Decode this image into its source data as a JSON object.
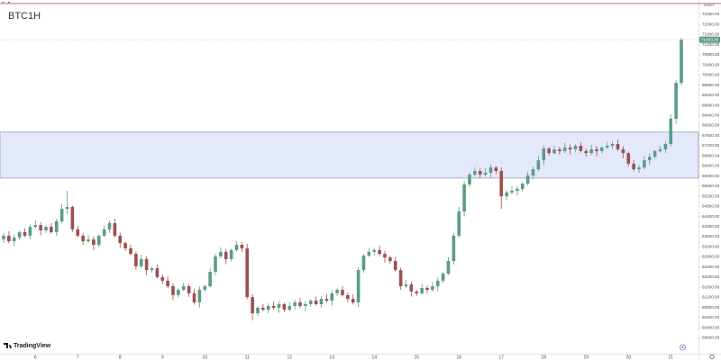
{
  "chart_data": {
    "type": "candlestick",
    "title": "BTC1H",
    "unit_label": "USDT",
    "watermark": "TradingView",
    "up_color": "#5b9c86",
    "down_color": "#9e4f4f",
    "grid": false,
    "ylim": [
      58970,
      72970
    ],
    "yticks": [
      {
        "value": 72400,
        "label": "72400.00"
      },
      {
        "value": 72000,
        "label": "72000.00"
      },
      {
        "value": 71600,
        "label": "71600.00"
      },
      {
        "value": 71200,
        "label": "71200.00"
      },
      {
        "value": 70800,
        "label": "70800.00"
      },
      {
        "value": 70400,
        "label": "70400.00"
      },
      {
        "value": 70000,
        "label": "70000.00"
      },
      {
        "value": 69600,
        "label": "69600.00"
      },
      {
        "value": 69200,
        "label": "69200.00"
      },
      {
        "value": 68800,
        "label": "68800.00"
      },
      {
        "value": 68400,
        "label": "68400.00"
      },
      {
        "value": 68000,
        "label": "68000.00"
      },
      {
        "value": 67600,
        "label": "67600.00"
      },
      {
        "value": 67200,
        "label": "67200.00"
      },
      {
        "value": 66800,
        "label": "66800.00"
      },
      {
        "value": 66400,
        "label": "66400.00"
      },
      {
        "value": 66000,
        "label": "66000.00"
      },
      {
        "value": 65600,
        "label": "65600.00"
      },
      {
        "value": 65200,
        "label": "65200.00"
      },
      {
        "value": 64800,
        "label": "64800.00"
      },
      {
        "value": 64400,
        "label": "64400.00"
      },
      {
        "value": 64000,
        "label": "64000.00"
      },
      {
        "value": 63600,
        "label": "63600.00"
      },
      {
        "value": 63200,
        "label": "63200.00"
      },
      {
        "value": 62800,
        "label": "62800.00"
      },
      {
        "value": 62400,
        "label": "62400.00"
      },
      {
        "value": 62000,
        "label": "62000.00"
      },
      {
        "value": 61600,
        "label": "61600.00"
      },
      {
        "value": 61200,
        "label": "61200.00"
      },
      {
        "value": 60800,
        "label": "60800.00"
      },
      {
        "value": 60400,
        "label": "60400.00"
      },
      {
        "value": 60000,
        "label": "60000.00"
      },
      {
        "value": 59600,
        "label": "59600.00"
      }
    ],
    "zones": [
      {
        "top": 67740,
        "bottom": 65920,
        "color": "#e3e9fb",
        "edge": "#7d8a9c"
      }
    ],
    "hlines": [
      {
        "value": 72830,
        "color": "#b87070"
      }
    ],
    "last_price_label": "71400.00",
    "categories": [
      null,
      null,
      null,
      null,
      null,
      null,
      "6",
      null,
      null,
      null,
      null,
      null,
      null,
      null,
      "7",
      null,
      null,
      null,
      null,
      null,
      null,
      null,
      "8",
      null,
      null,
      null,
      null,
      null,
      null,
      null,
      "9",
      null,
      null,
      null,
      null,
      null,
      null,
      null,
      "10",
      null,
      null,
      null,
      null,
      null,
      null,
      null,
      "11",
      null,
      null,
      null,
      null,
      null,
      null,
      null,
      "12",
      null,
      null,
      null,
      null,
      null,
      null,
      null,
      "13",
      null,
      null,
      null,
      null,
      null,
      null,
      null,
      "14",
      null,
      null,
      null,
      null,
      null,
      null,
      null,
      "15",
      null,
      null,
      null,
      null,
      null,
      null,
      null,
      "16",
      null,
      null,
      null,
      null,
      null,
      null,
      null,
      "17",
      null,
      null,
      null,
      null,
      null,
      null,
      null,
      "18",
      null,
      null,
      null,
      null,
      null,
      null,
      null,
      "19",
      null,
      null,
      null,
      null,
      null,
      null,
      null,
      "20",
      null,
      null,
      null,
      null,
      null,
      null,
      null,
      "21",
      null,
      null
    ],
    "open": [
      63500,
      63640,
      63420,
      63570,
      63780,
      63640,
      63990,
      64060,
      63850,
      63990,
      63780,
      64210,
      64700,
      64780,
      63890,
      63640,
      63420,
      63490,
      63280,
      63640,
      63890,
      64140,
      63640,
      63350,
      63140,
      62920,
      62430,
      62710,
      62280,
      62350,
      62000,
      61860,
      61640,
      61290,
      61500,
      61640,
      61360,
      61000,
      61500,
      61640,
      62210,
      62820,
      63000,
      62710,
      63070,
      63280,
      63140,
      61210,
      60570,
      60790,
      60710,
      60860,
      60790,
      60930,
      60710,
      60860,
      61000,
      60860,
      60930,
      61070,
      60930,
      61140,
      61070,
      61360,
      61500,
      61290,
      61140,
      61000,
      62280,
      62850,
      63000,
      63070,
      62920,
      62780,
      62640,
      62280,
      61640,
      61710,
      61430,
      61360,
      61570,
      61500,
      61640,
      61860,
      62140,
      62640,
      63640,
      64600,
      65670,
      66060,
      66200,
      66060,
      66130,
      66340,
      66200,
      65200,
      65350,
      65420,
      65490,
      65700,
      66020,
      66270,
      66630,
      67090,
      66910,
      67060,
      66990,
      67130,
      67060,
      67200,
      66990,
      66910,
      67060,
      66990,
      67130,
      67200,
      67270,
      67060,
      66910,
      66490,
      66270,
      66340,
      66630,
      66770,
      66990,
      67060,
      67270,
      68270,
      69690
    ],
    "high": [
      63740,
      63820,
      63690,
      63840,
      63930,
      64090,
      64240,
      64180,
      64050,
      64140,
      64310,
      64880,
      65420,
      64840,
      64040,
      63740,
      63670,
      63610,
      63700,
      64040,
      64240,
      64320,
      63760,
      63410,
      63290,
      63020,
      62890,
      62830,
      62410,
      62500,
      62100,
      62040,
      61760,
      61560,
      61790,
      61740,
      61540,
      61620,
      61700,
      62360,
      62920,
      63180,
      63120,
      63130,
      63430,
      63380,
      63320,
      61330,
      60850,
      60940,
      60960,
      61040,
      61050,
      60990,
      61010,
      61100,
      61180,
      61050,
      61130,
      61220,
      61240,
      61320,
      61480,
      61560,
      61650,
      61390,
      61320,
      62400,
      62910,
      63150,
      63170,
      63250,
      63040,
      62840,
      62790,
      62380,
      61890,
      61830,
      61490,
      61720,
      61670,
      61820,
      61980,
      62200,
      62790,
      63740,
      64780,
      65790,
      66120,
      66350,
      66300,
      66310,
      66460,
      66400,
      66350,
      65450,
      65600,
      65610,
      65760,
      66170,
      66370,
      66810,
      67210,
      67150,
      67210,
      67160,
      67310,
      67250,
      67260,
      67350,
      67090,
      67240,
      67180,
      67190,
      67350,
      67370,
      67450,
      67180,
      66970,
      66640,
      66440,
      66810,
      66890,
      67050,
      67210,
      67370,
      68450,
      69810,
      71460
    ],
    "low": [
      63360,
      63340,
      63220,
      63470,
      63580,
      63500,
      63910,
      63650,
      63750,
      63720,
      63640,
      64130,
      64500,
      63790,
      63580,
      63280,
      63340,
      63080,
      63180,
      63580,
      63750,
      63560,
      63150,
      63040,
      62860,
      62290,
      62350,
      62080,
      62180,
      61940,
      61720,
      61560,
      61090,
      61190,
      61440,
      61220,
      60920,
      60800,
      61400,
      61580,
      62070,
      62740,
      62510,
      62610,
      63010,
      63000,
      61130,
      60290,
      60470,
      60650,
      60570,
      60710,
      60590,
      60610,
      60650,
      60720,
      60780,
      60660,
      60830,
      60870,
      60790,
      60990,
      60870,
      61260,
      61230,
      61000,
      60920,
      60800,
      62180,
      62790,
      62860,
      62840,
      62580,
      62540,
      62220,
      61500,
      61560,
      61230,
      61260,
      61300,
      61360,
      61420,
      61440,
      61760,
      62080,
      62500,
      63560,
      64400,
      65570,
      66000,
      65920,
      65980,
      65930,
      66100,
      64700,
      65060,
      65270,
      65220,
      65390,
      65640,
      65880,
      66190,
      66430,
      66810,
      66850,
      66850,
      66910,
      66860,
      66960,
      66930,
      66770,
      66830,
      66790,
      66890,
      67070,
      67060,
      66980,
      66710,
      66390,
      66210,
      66130,
      66260,
      66430,
      66670,
      66930,
      66920,
      67190,
      68070,
      69590
    ],
    "close": [
      63640,
      63420,
      63570,
      63780,
      63640,
      63990,
      64060,
      63850,
      63990,
      63780,
      64210,
      64700,
      64780,
      63890,
      63640,
      63420,
      63490,
      63280,
      63640,
      63890,
      64140,
      63640,
      63350,
      63140,
      62920,
      62430,
      62710,
      62280,
      62350,
      62000,
      61860,
      61640,
      61290,
      61500,
      61640,
      61360,
      61000,
      61500,
      61640,
      62210,
      62820,
      63000,
      62710,
      63070,
      63280,
      63140,
      61210,
      60570,
      60790,
      60710,
      60860,
      60790,
      60930,
      60710,
      60860,
      61000,
      60860,
      60930,
      61070,
      60930,
      61140,
      61070,
      61360,
      61500,
      61290,
      61140,
      61000,
      62280,
      62850,
      63000,
      63070,
      62920,
      62780,
      62640,
      62280,
      61640,
      61710,
      61430,
      61360,
      61570,
      61500,
      61640,
      61860,
      62140,
      62640,
      63640,
      64600,
      65670,
      66060,
      66200,
      66060,
      66130,
      66340,
      66200,
      65200,
      65350,
      65420,
      65490,
      65700,
      66020,
      66270,
      66630,
      67090,
      66910,
      67060,
      66990,
      67130,
      67060,
      67200,
      66990,
      66910,
      67060,
      66990,
      67130,
      67200,
      67270,
      67060,
      66910,
      66490,
      66270,
      66340,
      66630,
      66770,
      66990,
      67060,
      67270,
      68270,
      69690,
      71400
    ]
  }
}
